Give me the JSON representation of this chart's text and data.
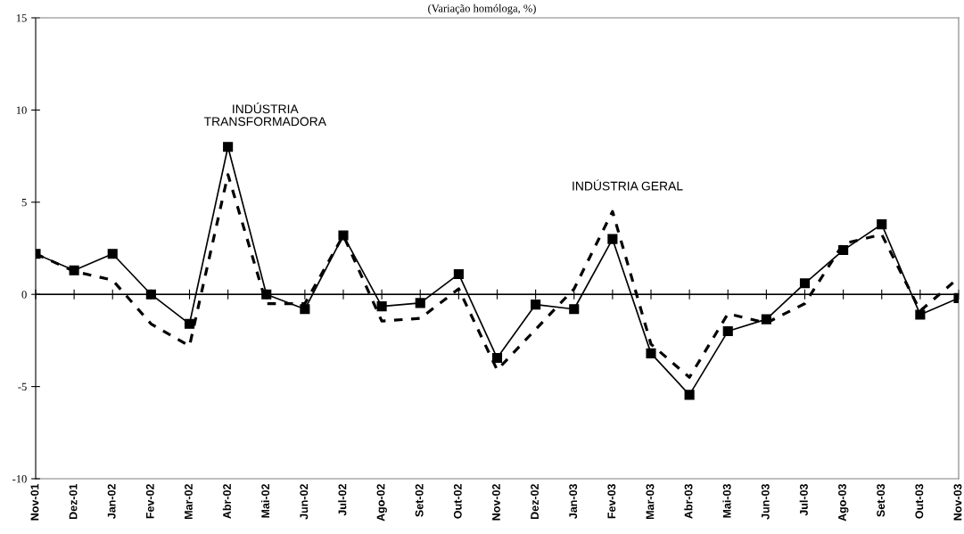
{
  "chart_data": {
    "type": "line",
    "title": "(Variação homóloga, %)",
    "categories": [
      "Nov-01",
      "Dez-01",
      "Jan-02",
      "Fev-02",
      "Mar-02",
      "Abr-02",
      "Mai-02",
      "Jun-02",
      "Jul-02",
      "Ago-02",
      "Set-02",
      "Out-02",
      "Nov-02",
      "Dez-02",
      "Jan-03",
      "Fev-03",
      "Mar-03",
      "Abr-03",
      "Mai-03",
      "Jun-03",
      "Jul-03",
      "Ago-03",
      "Set-03",
      "Out-03",
      "Nov-03"
    ],
    "series": [
      {
        "color": "#000000",
        "marker": "square",
        "line_style": "solid",
        "values": [
          2.2,
          1.3,
          2.2,
          0.0,
          -1.6,
          8.0,
          0.0,
          -0.8,
          3.2,
          -0.65,
          -0.47,
          1.1,
          -3.45,
          -0.55,
          -0.8,
          3.0,
          -3.2,
          -5.45,
          -2.0,
          -1.35,
          0.6,
          2.4,
          3.8,
          -1.1,
          -0.2
        ]
      },
      {
        "color": "#000000",
        "marker": "none",
        "line_style": "dashed",
        "values": [
          2.2,
          1.25,
          0.77,
          -1.6,
          -2.8,
          6.5,
          -0.5,
          -0.5,
          3.2,
          -1.45,
          -1.3,
          0.3,
          -4.1,
          -1.9,
          0.3,
          4.5,
          -2.7,
          -4.5,
          -1.05,
          -1.55,
          -0.5,
          2.75,
          3.25,
          -0.9,
          0.9
        ]
      }
    ],
    "annotations": [
      {
        "text": "INDÚSTRIA\nTRANSFORMADORA",
        "x": "Abr-02",
        "y": 8.0
      },
      {
        "text": "INDÚSTRIA GERAL",
        "x": "Fev-03",
        "y": 4.5
      }
    ],
    "ylim": [
      -10,
      15
    ],
    "yticks": [
      -10,
      -5,
      0,
      5,
      10,
      15
    ],
    "ref_lines": [
      {
        "axis": "y",
        "value": 0,
        "color": "#000000"
      }
    ],
    "grid": false,
    "legend": false
  }
}
